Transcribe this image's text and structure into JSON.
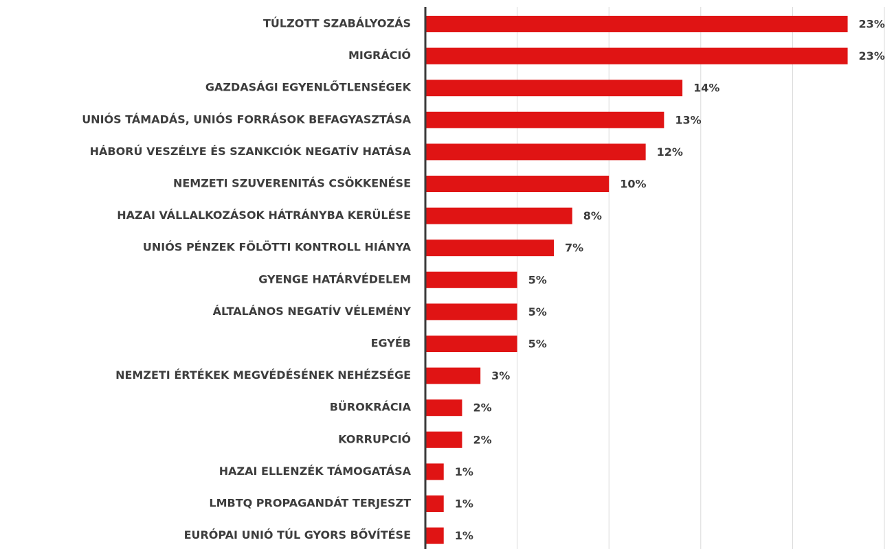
{
  "chart_data": {
    "type": "bar",
    "orientation": "horizontal",
    "categories": [
      "TÚLZOTT SZABÁLYOZÁS",
      "MIGRÁCIÓ",
      "GAZDASÁGI EGYENLŐTLENSÉGEK",
      "UNIÓS TÁMADÁS, UNIÓS FORRÁSOK BEFAGYASZTÁSA",
      "HÁBORÚ VESZÉLYE ÉS SZANKCIÓK NEGATÍV HATÁSA",
      "NEMZETI SZUVERENITÁS CSÖKKENÉSE",
      "HAZAI VÁLLALKOZÁSOK HÁTRÁNYBA KERÜLÉSE",
      "UNIÓS PÉNZEK FÖLÖTTI KONTROLL HIÁNYA",
      "GYENGE HATÁRVÉDELEM",
      "ÁLTALÁNOS NEGATÍV VÉLEMÉNY",
      "EGYÉB",
      "NEMZETI ÉRTÉKEK MEGVÉDÉSÉNEK NEHÉZSÉGE",
      "BÜROKRÁCIA",
      "KORRUPCIÓ",
      "HAZAI ELLENZÉK TÁMOGATÁSA",
      "LMBTQ PROPAGANDÁT TERJESZT",
      "EURÓPAI UNIÓ TÚL GYORS BŐVÍTÉSE"
    ],
    "values": [
      23,
      23,
      14,
      13,
      12,
      10,
      8,
      7,
      5,
      5,
      5,
      3,
      2,
      2,
      1,
      1,
      1
    ],
    "value_labels": [
      "23%",
      "23%",
      "14%",
      "13%",
      "12%",
      "10%",
      "8%",
      "7%",
      "5%",
      "5%",
      "5%",
      "3%",
      "2%",
      "2%",
      "1%",
      "1%",
      "1%"
    ],
    "color": "#e01414",
    "xlim": [
      0,
      25
    ],
    "xticks": [
      0,
      5,
      10,
      15,
      20,
      25
    ],
    "grid": true
  }
}
